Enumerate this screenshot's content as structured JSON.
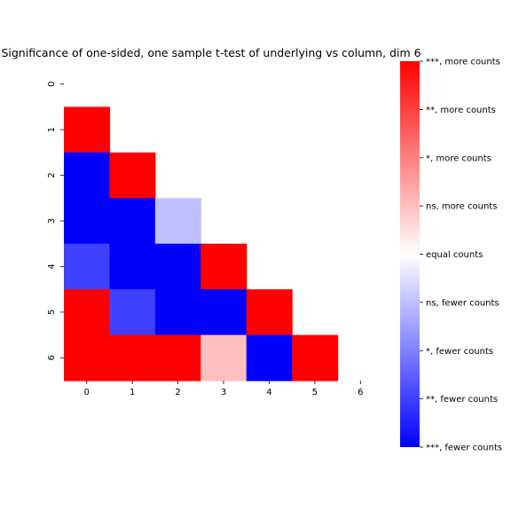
{
  "chart_data": {
    "type": "heatmap",
    "title": "Significance of one-sided, one sample t-test of underlying vs column, dim 6",
    "xlabel": "",
    "ylabel": "",
    "x_ticks": [
      "0",
      "1",
      "2",
      "3",
      "4",
      "5",
      "6"
    ],
    "y_ticks": [
      "0",
      "1",
      "2",
      "3",
      "4",
      "5",
      "6"
    ],
    "value_scale": [
      -4,
      4
    ],
    "cells": [
      {
        "row": 1,
        "col": 0,
        "value": 4
      },
      {
        "row": 2,
        "col": 0,
        "value": -4
      },
      {
        "row": 2,
        "col": 1,
        "value": 4
      },
      {
        "row": 3,
        "col": 0,
        "value": -4
      },
      {
        "row": 3,
        "col": 1,
        "value": -4
      },
      {
        "row": 3,
        "col": 2,
        "value": -1
      },
      {
        "row": 4,
        "col": 0,
        "value": -3
      },
      {
        "row": 4,
        "col": 1,
        "value": -4
      },
      {
        "row": 4,
        "col": 2,
        "value": -4
      },
      {
        "row": 4,
        "col": 3,
        "value": 4
      },
      {
        "row": 5,
        "col": 0,
        "value": 4
      },
      {
        "row": 5,
        "col": 1,
        "value": -3
      },
      {
        "row": 5,
        "col": 2,
        "value": -4
      },
      {
        "row": 5,
        "col": 3,
        "value": -4
      },
      {
        "row": 5,
        "col": 4,
        "value": 4
      },
      {
        "row": 6,
        "col": 0,
        "value": 4
      },
      {
        "row": 6,
        "col": 1,
        "value": 4
      },
      {
        "row": 6,
        "col": 2,
        "value": 4
      },
      {
        "row": 6,
        "col": 3,
        "value": 1
      },
      {
        "row": 6,
        "col": 4,
        "value": -4
      },
      {
        "row": 6,
        "col": 5,
        "value": 4
      }
    ],
    "colorbar": {
      "colors": {
        "low": "#0000ff",
        "mid": "#ffffff",
        "high": "#ff0000"
      },
      "labels": [
        "***, more counts",
        "**, more counts",
        "*, more counts",
        "ns, more counts",
        "equal counts",
        "ns, fewer counts",
        "*, fewer counts",
        "**, fewer counts",
        "***, fewer counts"
      ]
    }
  }
}
